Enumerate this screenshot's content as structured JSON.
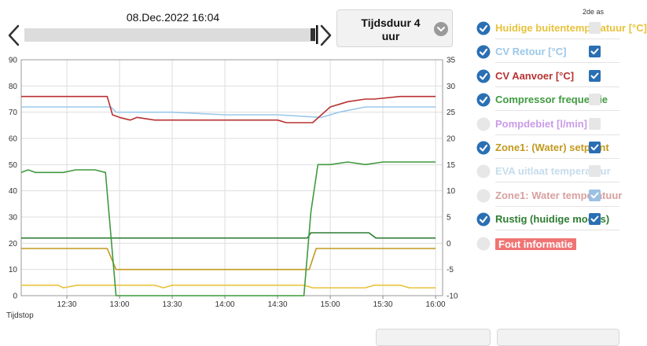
{
  "header": {
    "date_label": "08.Dec.2022 16:04",
    "duration_label": "Tijdsduur 4 uur"
  },
  "legend": {
    "second_axis_header": "2de as",
    "items": [
      {
        "label": "Huidige buitentemperatuur [°C]",
        "color": "#e8c23a",
        "selected": true,
        "second_axis": false
      },
      {
        "label": "CV Retour [°C]",
        "color": "#9cc8ea",
        "selected": true,
        "second_axis": true
      },
      {
        "label": "CV Aanvoer [°C]",
        "color": "#b83232",
        "selected": true,
        "second_axis": true
      },
      {
        "label": "Compressor frequentie",
        "color": "#3f9a3f",
        "selected": true,
        "second_axis": false
      },
      {
        "label": "Pompdebiet [l/min]",
        "color": "#c99be8",
        "selected": false,
        "second_axis": false
      },
      {
        "label": "Zone1: (Water) setpoint",
        "color": "#c29a1e",
        "selected": true,
        "second_axis": true
      },
      {
        "label": "EVA uitlaat temperatuur",
        "color": "#c6dcec",
        "selected": false,
        "second_axis": false
      },
      {
        "label": "Zone1: Water temperatuur",
        "color": "#d8a0a0",
        "selected": false,
        "second_axis": true
      },
      {
        "label": "Rustig (huidige modus)",
        "color": "#2e7d32",
        "selected": true,
        "second_axis": true
      },
      {
        "label": "Fout informatie",
        "color": "#f07474",
        "selected": false,
        "error": true
      }
    ]
  },
  "chart_data": {
    "type": "line",
    "xlabel": "Tijdstop",
    "x_ticks": [
      "12:30",
      "13:00",
      "13:30",
      "14:00",
      "14:30",
      "15:00",
      "15:30",
      "16:00"
    ],
    "xlim": [
      "12:04",
      "16:04"
    ],
    "ylim_left": [
      0,
      90
    ],
    "ylim_right": [
      -10,
      35
    ],
    "y_ticks_left": [
      0,
      10,
      20,
      30,
      40,
      50,
      60,
      70,
      80,
      90
    ],
    "y_ticks_right": [
      -10,
      -5,
      0,
      5,
      10,
      15,
      20,
      25,
      30,
      35
    ],
    "grid": true,
    "series": [
      {
        "name": "CV Retour [°C]",
        "axis": "right",
        "color": "#9cc8ea",
        "x": [
          "12:04",
          "12:55",
          "12:58",
          "13:30",
          "14:00",
          "14:30",
          "14:55",
          "15:05",
          "15:20",
          "15:40",
          "16:00"
        ],
        "y": [
          26,
          26,
          25,
          25,
          24.5,
          24.5,
          24,
          25,
          26,
          26,
          26
        ]
      },
      {
        "name": "CV Aanvoer [°C]",
        "axis": "right",
        "color": "#b83232",
        "x": [
          "12:04",
          "12:53",
          "12:56",
          "13:00",
          "13:06",
          "13:10",
          "13:20",
          "13:50",
          "14:00",
          "14:30",
          "14:35",
          "14:40",
          "14:50",
          "15:00",
          "15:05",
          "15:10",
          "15:20",
          "15:25",
          "15:40",
          "15:50",
          "16:00"
        ],
        "y": [
          28,
          28,
          24.5,
          24,
          23.5,
          24,
          23.5,
          23.5,
          23.5,
          23.5,
          23,
          23,
          23,
          26,
          26.5,
          27,
          27.5,
          27.5,
          28,
          28,
          28
        ]
      },
      {
        "name": "Zone1: (Water) setpoint",
        "axis": "right",
        "color": "#c29a1e",
        "x": [
          "12:04",
          "12:53",
          "12:58",
          "14:30",
          "14:48",
          "14:52",
          "16:00"
        ],
        "y": [
          -1,
          -1,
          -5,
          -5,
          -5,
          -1,
          -1
        ]
      },
      {
        "name": "Rustig (huidige modus)",
        "axis": "right",
        "color": "#2e7d32",
        "x": [
          "12:04",
          "14:47",
          "14:49",
          "15:22",
          "15:26",
          "16:00"
        ],
        "y": [
          1,
          1,
          2,
          2,
          1,
          1
        ]
      },
      {
        "name": "Huidige buitentemperatuur [°C]",
        "axis": "left",
        "color": "#e8c23a",
        "x": [
          "12:04",
          "12:25",
          "12:28",
          "12:36",
          "12:40",
          "13:20",
          "13:25",
          "13:30",
          "14:45",
          "14:50",
          "15:20",
          "15:25",
          "15:40",
          "15:45",
          "16:00"
        ],
        "y": [
          4,
          4,
          3,
          4,
          4,
          4,
          3,
          4,
          4,
          3,
          3,
          4,
          4,
          3,
          3
        ]
      },
      {
        "name": "Compressor frequentie",
        "axis": "left",
        "color": "#3f9a3f",
        "x": [
          "12:04",
          "12:08",
          "12:12",
          "12:28",
          "12:35",
          "12:46",
          "12:52",
          "12:58",
          "14:45",
          "14:49",
          "14:53",
          "15:00",
          "15:10",
          "15:20",
          "15:30",
          "15:40",
          "16:00"
        ],
        "y": [
          47,
          48,
          47,
          47,
          48,
          48,
          47,
          0,
          0,
          32,
          50,
          50,
          51,
          50,
          51,
          51,
          51
        ]
      }
    ]
  }
}
